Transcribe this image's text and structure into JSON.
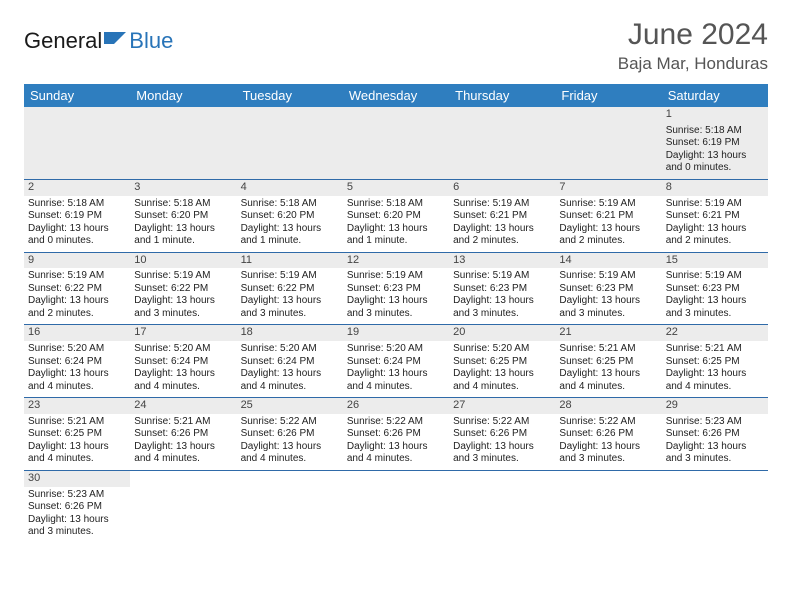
{
  "logo": {
    "text1": "General",
    "text2": "Blue",
    "color_accent": "#2874b8"
  },
  "title": "June 2024",
  "location": "Baja Mar, Honduras",
  "colors": {
    "header_bg": "#2f7ebf",
    "header_text": "#ffffff",
    "daynum_bg": "#ececec",
    "border": "#2f6aa8",
    "text": "#222222"
  },
  "day_headers": [
    "Sunday",
    "Monday",
    "Tuesday",
    "Wednesday",
    "Thursday",
    "Friday",
    "Saturday"
  ],
  "weeks": [
    [
      null,
      null,
      null,
      null,
      null,
      null,
      {
        "n": "1",
        "sr": "5:18 AM",
        "ss": "6:19 PM",
        "dl": "13 hours and 0 minutes."
      }
    ],
    [
      {
        "n": "2",
        "sr": "5:18 AM",
        "ss": "6:19 PM",
        "dl": "13 hours and 0 minutes."
      },
      {
        "n": "3",
        "sr": "5:18 AM",
        "ss": "6:20 PM",
        "dl": "13 hours and 1 minute."
      },
      {
        "n": "4",
        "sr": "5:18 AM",
        "ss": "6:20 PM",
        "dl": "13 hours and 1 minute."
      },
      {
        "n": "5",
        "sr": "5:18 AM",
        "ss": "6:20 PM",
        "dl": "13 hours and 1 minute."
      },
      {
        "n": "6",
        "sr": "5:19 AM",
        "ss": "6:21 PM",
        "dl": "13 hours and 2 minutes."
      },
      {
        "n": "7",
        "sr": "5:19 AM",
        "ss": "6:21 PM",
        "dl": "13 hours and 2 minutes."
      },
      {
        "n": "8",
        "sr": "5:19 AM",
        "ss": "6:21 PM",
        "dl": "13 hours and 2 minutes."
      }
    ],
    [
      {
        "n": "9",
        "sr": "5:19 AM",
        "ss": "6:22 PM",
        "dl": "13 hours and 2 minutes."
      },
      {
        "n": "10",
        "sr": "5:19 AM",
        "ss": "6:22 PM",
        "dl": "13 hours and 3 minutes."
      },
      {
        "n": "11",
        "sr": "5:19 AM",
        "ss": "6:22 PM",
        "dl": "13 hours and 3 minutes."
      },
      {
        "n": "12",
        "sr": "5:19 AM",
        "ss": "6:23 PM",
        "dl": "13 hours and 3 minutes."
      },
      {
        "n": "13",
        "sr": "5:19 AM",
        "ss": "6:23 PM",
        "dl": "13 hours and 3 minutes."
      },
      {
        "n": "14",
        "sr": "5:19 AM",
        "ss": "6:23 PM",
        "dl": "13 hours and 3 minutes."
      },
      {
        "n": "15",
        "sr": "5:19 AM",
        "ss": "6:23 PM",
        "dl": "13 hours and 3 minutes."
      }
    ],
    [
      {
        "n": "16",
        "sr": "5:20 AM",
        "ss": "6:24 PM",
        "dl": "13 hours and 4 minutes."
      },
      {
        "n": "17",
        "sr": "5:20 AM",
        "ss": "6:24 PM",
        "dl": "13 hours and 4 minutes."
      },
      {
        "n": "18",
        "sr": "5:20 AM",
        "ss": "6:24 PM",
        "dl": "13 hours and 4 minutes."
      },
      {
        "n": "19",
        "sr": "5:20 AM",
        "ss": "6:24 PM",
        "dl": "13 hours and 4 minutes."
      },
      {
        "n": "20",
        "sr": "5:20 AM",
        "ss": "6:25 PM",
        "dl": "13 hours and 4 minutes."
      },
      {
        "n": "21",
        "sr": "5:21 AM",
        "ss": "6:25 PM",
        "dl": "13 hours and 4 minutes."
      },
      {
        "n": "22",
        "sr": "5:21 AM",
        "ss": "6:25 PM",
        "dl": "13 hours and 4 minutes."
      }
    ],
    [
      {
        "n": "23",
        "sr": "5:21 AM",
        "ss": "6:25 PM",
        "dl": "13 hours and 4 minutes."
      },
      {
        "n": "24",
        "sr": "5:21 AM",
        "ss": "6:26 PM",
        "dl": "13 hours and 4 minutes."
      },
      {
        "n": "25",
        "sr": "5:22 AM",
        "ss": "6:26 PM",
        "dl": "13 hours and 4 minutes."
      },
      {
        "n": "26",
        "sr": "5:22 AM",
        "ss": "6:26 PM",
        "dl": "13 hours and 4 minutes."
      },
      {
        "n": "27",
        "sr": "5:22 AM",
        "ss": "6:26 PM",
        "dl": "13 hours and 3 minutes."
      },
      {
        "n": "28",
        "sr": "5:22 AM",
        "ss": "6:26 PM",
        "dl": "13 hours and 3 minutes."
      },
      {
        "n": "29",
        "sr": "5:23 AM",
        "ss": "6:26 PM",
        "dl": "13 hours and 3 minutes."
      }
    ],
    [
      {
        "n": "30",
        "sr": "5:23 AM",
        "ss": "6:26 PM",
        "dl": "13 hours and 3 minutes."
      },
      null,
      null,
      null,
      null,
      null,
      null
    ]
  ],
  "labels": {
    "sunrise": "Sunrise: ",
    "sunset": "Sunset: ",
    "daylight": "Daylight: "
  }
}
